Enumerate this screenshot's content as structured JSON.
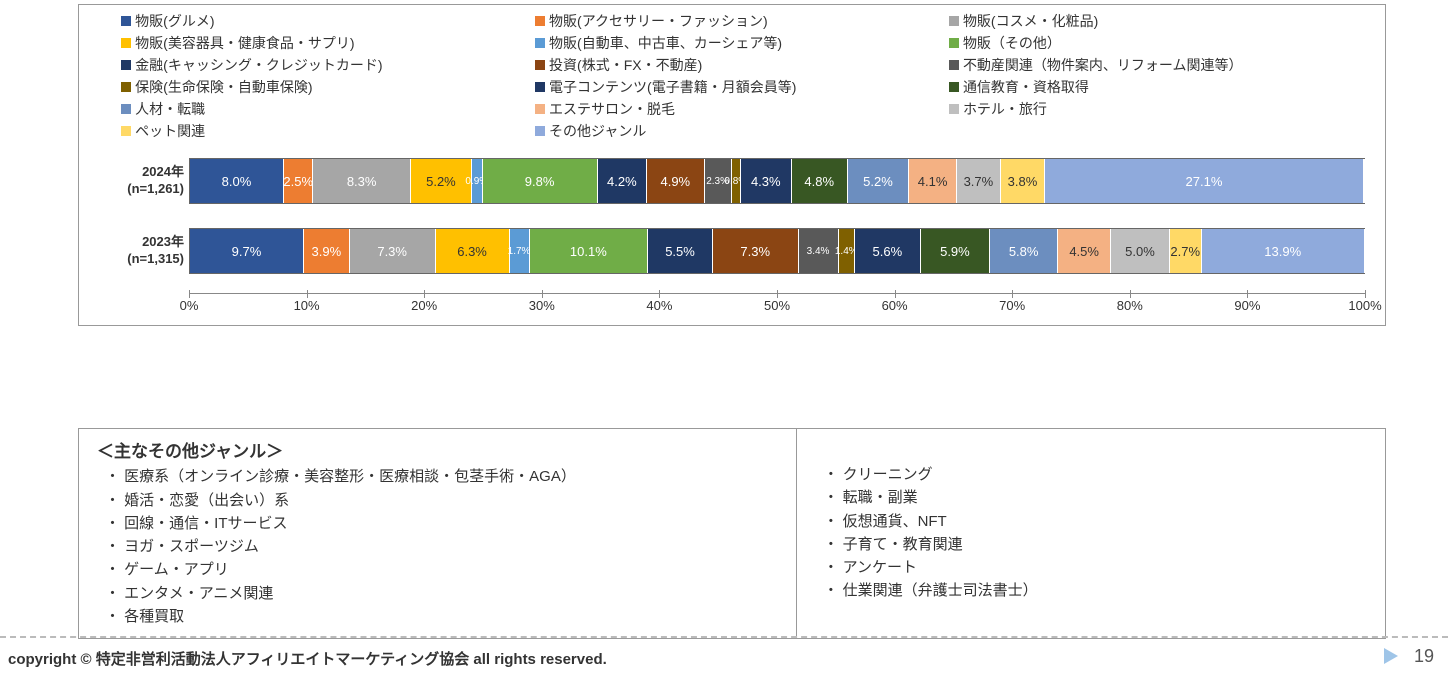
{
  "chart": {
    "type": "stacked_bar_horizontal",
    "xlim": [
      0,
      100
    ],
    "xtick_step": 10,
    "xtick_suffix": "%",
    "background_color": "#ffffff",
    "border_color": "#999999",
    "categories": [
      {
        "name": "物販(グルメ)",
        "color": "#2f5597"
      },
      {
        "name": "物販(アクセサリー・ファッション)",
        "color": "#ed7d31"
      },
      {
        "name": "物販(コスメ・化粧品)",
        "color": "#a6a6a6"
      },
      {
        "name": "物販(美容器具・健康食品・サプリ)",
        "color": "#ffc000"
      },
      {
        "name": "物販(自動車、中古車、カーシェア等)",
        "color": "#5b9bd5"
      },
      {
        "name": "物販（その他）",
        "color": "#70ad47"
      },
      {
        "name": "金融(キャッシング・クレジットカード)",
        "color": "#1f3864"
      },
      {
        "name": "投資(株式・FX・不動産)",
        "color": "#8b4513"
      },
      {
        "name": "不動産関連（物件案内、リフォーム関連等）",
        "color": "#595959"
      },
      {
        "name": "保険(生命保険・自動車保険)",
        "color": "#7f6000"
      },
      {
        "name": "電子コンテンツ(電子書籍・月額会員等)",
        "color": "#203864"
      },
      {
        "name": "通信教育・資格取得",
        "color": "#385723"
      },
      {
        "name": "人材・転職",
        "color": "#6c8ebf"
      },
      {
        "name": "エステサロン・脱毛",
        "color": "#f4b183"
      },
      {
        "name": "ホテル・旅行",
        "color": "#bfbfbf"
      },
      {
        "name": "ペット関連",
        "color": "#ffd966"
      },
      {
        "name": "その他ジャンル",
        "color": "#8faadc"
      }
    ],
    "rows": [
      {
        "label_line1": "2024年",
        "label_line2": "(n=1,261)",
        "values": [
          8.0,
          2.5,
          8.3,
          5.2,
          0.9,
          9.8,
          4.2,
          4.9,
          2.3,
          0.8,
          4.3,
          4.8,
          5.2,
          4.1,
          3.7,
          3.8,
          27.1
        ],
        "tiny_idx": [
          4,
          8,
          9
        ],
        "dark_text_idx": [
          3,
          13,
          14,
          15
        ]
      },
      {
        "label_line1": "2023年",
        "label_line2": "(n=1,315)",
        "values": [
          9.7,
          3.9,
          7.3,
          6.3,
          1.7,
          10.1,
          5.5,
          7.3,
          3.4,
          1.4,
          5.6,
          5.9,
          5.8,
          4.5,
          5.0,
          2.7,
          13.9
        ],
        "tiny_idx": [
          4,
          8,
          9
        ],
        "dark_text_idx": [
          3,
          13,
          14,
          15
        ]
      }
    ]
  },
  "notes": {
    "title": "＜主なその他ジャンル＞",
    "left": [
      "医療系（オンライン診療・美容整形・医療相談・包茎手術・AGA）",
      "婚活・恋愛（出会い）系",
      "回線・通信・ITサービス",
      "ヨガ・スポーツジム",
      "ゲーム・アプリ",
      "エンタメ・アニメ関連",
      "各種買取"
    ],
    "right": [
      "クリーニング",
      "転職・副業",
      "仮想通貨、NFT",
      "子育て・教育関連",
      "アンケート",
      "仕業関連（弁護士司法書士）"
    ]
  },
  "footer": {
    "copyright": "copyright © 特定非営利活動法人アフィリエイトマーケティング協会 all rights reserved.",
    "page": "19"
  }
}
